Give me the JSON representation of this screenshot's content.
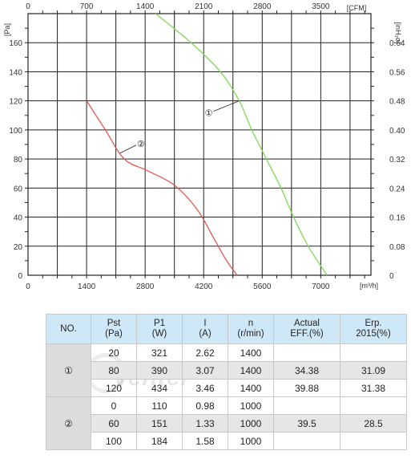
{
  "chart_data": {
    "type": "line",
    "axes": {
      "bottom": {
        "label": "[m³/h]",
        "ticks": [
          "0",
          "1400",
          "2800",
          "4200",
          "5600",
          "7000"
        ]
      },
      "top": {
        "label": "[CFM]",
        "ticks": [
          "0",
          "700",
          "1400",
          "2100",
          "2800",
          "3500"
        ]
      },
      "left": {
        "label": "[Pa]",
        "ticks": [
          "0",
          "20",
          "40",
          "60",
          "80",
          "100",
          "120",
          "140",
          "160"
        ]
      },
      "right": {
        "label": "[inH₂o]",
        "ticks": [
          "0",
          "0.08",
          "0.16",
          "0.24",
          "0.32",
          "0.40",
          "0.48",
          "0.56",
          "0.64"
        ]
      }
    },
    "xlim": [
      0,
      8200
    ],
    "ylim": [
      0,
      180
    ],
    "grid": true,
    "series": [
      {
        "marker": "①",
        "color": "#7ed957",
        "points": [
          [
            3050,
            180
          ],
          [
            3900,
            160
          ],
          [
            4600,
            140
          ],
          [
            5050,
            120
          ],
          [
            5350,
            100
          ],
          [
            5700,
            80
          ],
          [
            6050,
            60
          ],
          [
            6350,
            40
          ],
          [
            6700,
            20
          ],
          [
            7150,
            0
          ]
        ]
      },
      {
        "marker": "②",
        "color": "#e05a50",
        "points": [
          [
            1400,
            120
          ],
          [
            1850,
            100
          ],
          [
            2300,
            80
          ],
          [
            2850,
            72
          ],
          [
            3500,
            62
          ],
          [
            4050,
            45
          ],
          [
            4450,
            25
          ],
          [
            4750,
            10
          ],
          [
            5000,
            0
          ]
        ]
      }
    ]
  },
  "table": {
    "headers": [
      [
        "NO."
      ],
      [
        "Pst",
        "(Pa)"
      ],
      [
        "P1",
        "(W)"
      ],
      [
        "I",
        "(A)"
      ],
      [
        "n",
        "(r/min)"
      ],
      [
        "Actual",
        "EFF.(%)"
      ],
      [
        "Erp.",
        "2015(%)"
      ]
    ],
    "groups": [
      {
        "no": "①",
        "rows": [
          [
            "20",
            "321",
            "2.62",
            "1400",
            "",
            ""
          ],
          [
            "80",
            "390",
            "3.07",
            "1400",
            "34.38",
            "31.09"
          ],
          [
            "120",
            "434",
            "3.46",
            "1400",
            "39.88",
            "31.38"
          ]
        ]
      },
      {
        "no": "②",
        "rows": [
          [
            "0",
            "110",
            "0.98",
            "1000",
            "",
            ""
          ],
          [
            "60",
            "151",
            "1.33",
            "1000",
            "39.5",
            "28.5"
          ],
          [
            "100",
            "184",
            "1.58",
            "1000",
            "",
            ""
          ]
        ]
      }
    ]
  },
  "watermark": {
    "text": "ventel"
  }
}
